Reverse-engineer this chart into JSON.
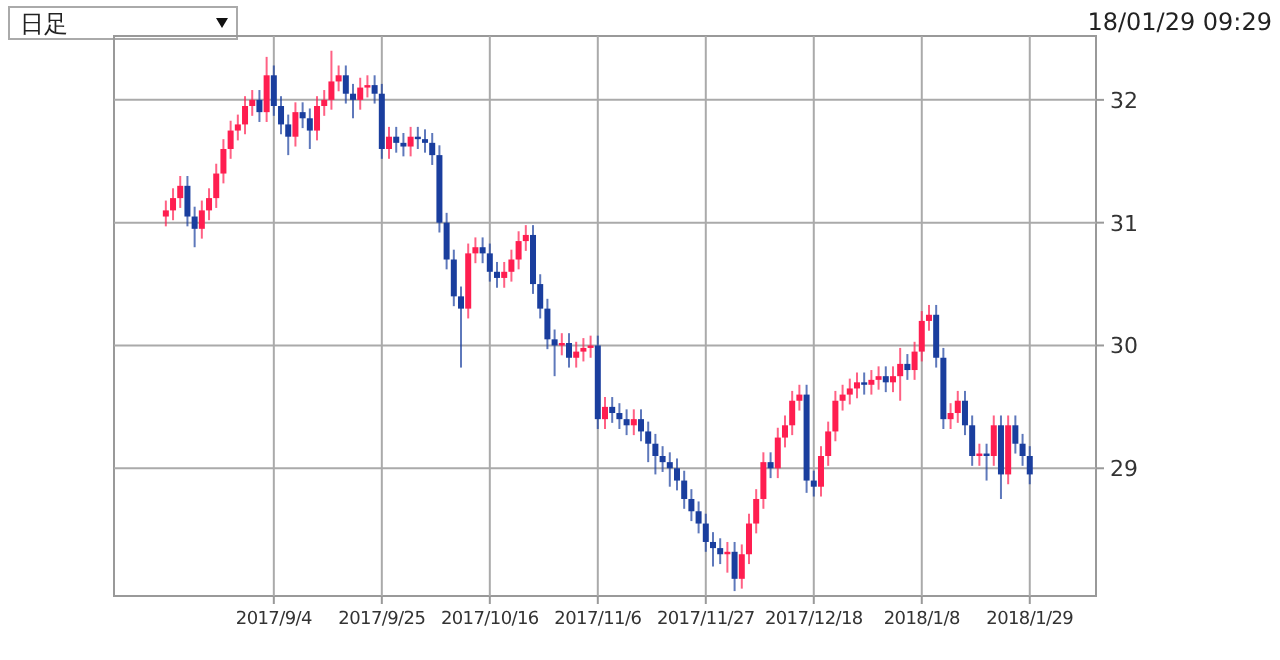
{
  "chart_data": {
    "type": "candlestick",
    "annotations": [
      "日足",
      "18/01/29 09:29"
    ],
    "categories": [
      null,
      null,
      null,
      null,
      null,
      null,
      null,
      null,
      null,
      null,
      null,
      null,
      null,
      null,
      null,
      "2017/9/4",
      null,
      null,
      null,
      null,
      null,
      null,
      null,
      null,
      null,
      null,
      null,
      null,
      null,
      null,
      "2017/9/25",
      null,
      null,
      null,
      null,
      null,
      null,
      null,
      null,
      null,
      null,
      null,
      null,
      null,
      null,
      "2017/10/16",
      null,
      null,
      null,
      null,
      null,
      null,
      null,
      null,
      null,
      null,
      null,
      null,
      null,
      null,
      "2017/11/6",
      null,
      null,
      null,
      null,
      null,
      null,
      null,
      null,
      null,
      null,
      null,
      null,
      null,
      null,
      "2017/11/27",
      null,
      null,
      null,
      null,
      null,
      null,
      null,
      null,
      null,
      null,
      null,
      null,
      null,
      null,
      "2017/12/18",
      null,
      null,
      null,
      null,
      null,
      null,
      null,
      null,
      null,
      null,
      null,
      null,
      null,
      null,
      "2018/1/8",
      null,
      null,
      null,
      null,
      null,
      null,
      null,
      null,
      null,
      null,
      null,
      null,
      null,
      null,
      "2018/1/29"
    ],
    "ohlc": [
      [
        31.05,
        31.18,
        30.97,
        31.1
      ],
      [
        31.1,
        31.28,
        31.02,
        31.2
      ],
      [
        31.2,
        31.38,
        31.12,
        31.3
      ],
      [
        31.3,
        31.38,
        30.97,
        31.05
      ],
      [
        31.05,
        31.13,
        30.8,
        30.95
      ],
      [
        30.95,
        31.18,
        30.87,
        31.1
      ],
      [
        31.1,
        31.28,
        31.02,
        31.2
      ],
      [
        31.2,
        31.48,
        31.12,
        31.4
      ],
      [
        31.4,
        31.68,
        31.32,
        31.6
      ],
      [
        31.6,
        31.83,
        31.52,
        31.75
      ],
      [
        31.75,
        31.88,
        31.67,
        31.8
      ],
      [
        31.8,
        32.03,
        31.72,
        31.95
      ],
      [
        31.95,
        32.08,
        31.87,
        32.0
      ],
      [
        32.0,
        32.08,
        31.82,
        31.9
      ],
      [
        31.9,
        32.35,
        31.82,
        32.2
      ],
      [
        32.2,
        32.28,
        31.87,
        31.95
      ],
      [
        31.95,
        32.03,
        31.72,
        31.8
      ],
      [
        31.8,
        31.88,
        31.55,
        31.7
      ],
      [
        31.7,
        31.98,
        31.62,
        31.9
      ],
      [
        31.9,
        31.98,
        31.77,
        31.85
      ],
      [
        31.85,
        31.93,
        31.6,
        31.75
      ],
      [
        31.75,
        32.03,
        31.67,
        31.95
      ],
      [
        31.95,
        32.08,
        31.87,
        32.0
      ],
      [
        32.0,
        32.4,
        31.92,
        32.15
      ],
      [
        32.15,
        32.28,
        32.07,
        32.2
      ],
      [
        32.2,
        32.28,
        31.97,
        32.05
      ],
      [
        32.05,
        32.13,
        31.85,
        32.0
      ],
      [
        32.0,
        32.18,
        31.92,
        32.1
      ],
      [
        32.1,
        32.2,
        32.02,
        32.12
      ],
      [
        32.12,
        32.2,
        31.97,
        32.05
      ],
      [
        32.05,
        32.13,
        31.52,
        31.6
      ],
      [
        31.6,
        31.78,
        31.52,
        31.7
      ],
      [
        31.7,
        31.78,
        31.57,
        31.65
      ],
      [
        31.65,
        31.73,
        31.54,
        31.62
      ],
      [
        31.62,
        31.78,
        31.54,
        31.7
      ],
      [
        31.7,
        31.78,
        31.6,
        31.68
      ],
      [
        31.68,
        31.76,
        31.57,
        31.65
      ],
      [
        31.65,
        31.73,
        31.47,
        31.55
      ],
      [
        31.55,
        31.63,
        30.92,
        31.0
      ],
      [
        31.0,
        31.08,
        30.62,
        30.7
      ],
      [
        30.7,
        30.78,
        30.32,
        30.4
      ],
      [
        30.4,
        30.48,
        29.82,
        30.3
      ],
      [
        30.3,
        30.83,
        30.22,
        30.75
      ],
      [
        30.75,
        30.88,
        30.67,
        30.8
      ],
      [
        30.8,
        30.88,
        30.67,
        30.75
      ],
      [
        30.75,
        30.83,
        30.52,
        30.6
      ],
      [
        30.6,
        30.68,
        30.47,
        30.55
      ],
      [
        30.55,
        30.68,
        30.47,
        30.6
      ],
      [
        30.6,
        30.78,
        30.52,
        30.7
      ],
      [
        30.7,
        30.93,
        30.62,
        30.85
      ],
      [
        30.85,
        30.98,
        30.77,
        30.9
      ],
      [
        30.9,
        30.98,
        30.42,
        30.5
      ],
      [
        30.5,
        30.58,
        30.22,
        30.3
      ],
      [
        30.3,
        30.38,
        29.97,
        30.05
      ],
      [
        30.05,
        30.13,
        29.75,
        30.0
      ],
      [
        30.0,
        30.1,
        29.92,
        30.02
      ],
      [
        30.02,
        30.1,
        29.82,
        29.9
      ],
      [
        29.9,
        30.03,
        29.82,
        29.95
      ],
      [
        29.95,
        30.06,
        29.87,
        29.98
      ],
      [
        29.98,
        30.08,
        29.9,
        30.0
      ],
      [
        30.0,
        30.08,
        29.32,
        29.4
      ],
      [
        29.4,
        29.58,
        29.32,
        29.5
      ],
      [
        29.5,
        29.58,
        29.37,
        29.45
      ],
      [
        29.45,
        29.53,
        29.32,
        29.4
      ],
      [
        29.4,
        29.48,
        29.27,
        29.35
      ],
      [
        29.35,
        29.48,
        29.27,
        29.4
      ],
      [
        29.4,
        29.48,
        29.22,
        29.3
      ],
      [
        29.3,
        29.38,
        29.05,
        29.2
      ],
      [
        29.2,
        29.28,
        28.95,
        29.1
      ],
      [
        29.1,
        29.18,
        28.97,
        29.05
      ],
      [
        29.05,
        29.13,
        28.85,
        29.0
      ],
      [
        29.0,
        29.08,
        28.82,
        28.9
      ],
      [
        28.9,
        28.98,
        28.67,
        28.75
      ],
      [
        28.75,
        28.83,
        28.57,
        28.65
      ],
      [
        28.65,
        28.73,
        28.47,
        28.55
      ],
      [
        28.55,
        28.63,
        28.32,
        28.4
      ],
      [
        28.4,
        28.48,
        28.2,
        28.35
      ],
      [
        28.35,
        28.43,
        28.22,
        28.3
      ],
      [
        28.3,
        28.4,
        28.15,
        28.32
      ],
      [
        28.32,
        28.4,
        28.0,
        28.1
      ],
      [
        28.1,
        28.38,
        28.02,
        28.3
      ],
      [
        28.3,
        28.63,
        28.22,
        28.55
      ],
      [
        28.55,
        28.83,
        28.47,
        28.75
      ],
      [
        28.75,
        29.13,
        28.67,
        29.05
      ],
      [
        29.05,
        29.13,
        28.92,
        29.0
      ],
      [
        29.0,
        29.33,
        28.92,
        29.25
      ],
      [
        29.25,
        29.43,
        29.17,
        29.35
      ],
      [
        29.35,
        29.63,
        29.27,
        29.55
      ],
      [
        29.55,
        29.68,
        29.47,
        29.6
      ],
      [
        29.6,
        29.68,
        28.8,
        28.9
      ],
      [
        28.9,
        28.98,
        28.77,
        28.85
      ],
      [
        28.85,
        29.18,
        28.77,
        29.1
      ],
      [
        29.1,
        29.38,
        29.02,
        29.3
      ],
      [
        29.3,
        29.63,
        29.22,
        29.55
      ],
      [
        29.55,
        29.68,
        29.47,
        29.6
      ],
      [
        29.6,
        29.73,
        29.52,
        29.65
      ],
      [
        29.65,
        29.78,
        29.57,
        29.7
      ],
      [
        29.7,
        29.78,
        29.6,
        29.68
      ],
      [
        29.68,
        29.8,
        29.6,
        29.72
      ],
      [
        29.72,
        29.83,
        29.64,
        29.75
      ],
      [
        29.75,
        29.83,
        29.62,
        29.7
      ],
      [
        29.7,
        29.83,
        29.62,
        29.75
      ],
      [
        29.75,
        29.98,
        29.55,
        29.85
      ],
      [
        29.85,
        29.93,
        29.72,
        29.8
      ],
      [
        29.8,
        30.03,
        29.72,
        29.95
      ],
      [
        29.95,
        30.28,
        29.87,
        30.2
      ],
      [
        30.2,
        30.33,
        30.12,
        30.25
      ],
      [
        30.25,
        30.33,
        29.82,
        29.9
      ],
      [
        29.9,
        29.98,
        29.32,
        29.4
      ],
      [
        29.4,
        29.53,
        29.32,
        29.45
      ],
      [
        29.45,
        29.63,
        29.37,
        29.55
      ],
      [
        29.55,
        29.63,
        29.27,
        29.35
      ],
      [
        29.35,
        29.43,
        29.02,
        29.1
      ],
      [
        29.1,
        29.2,
        29.02,
        29.12
      ],
      [
        29.12,
        29.2,
        28.9,
        29.1
      ],
      [
        29.1,
        29.43,
        29.02,
        29.35
      ],
      [
        29.35,
        29.43,
        28.75,
        28.95
      ],
      [
        28.95,
        29.43,
        28.87,
        29.35
      ],
      [
        29.35,
        29.43,
        29.12,
        29.2
      ],
      [
        29.2,
        29.28,
        29.02,
        29.1
      ],
      [
        29.1,
        29.18,
        28.87,
        28.95
      ]
    ],
    "colors": [
      "#ff1e50",
      "#ff1e50",
      "#ff1e50",
      "#1a3e9e",
      "#1a3e9e",
      "#ff1e50",
      "#ff1e50",
      "#ff1e50",
      "#ff1e50",
      "#ff1e50",
      "#ff1e50",
      "#ff1e50",
      "#ff1e50",
      "#1a3e9e",
      "#ff1e50",
      "#1a3e9e",
      "#1a3e9e",
      "#1a3e9e",
      "#ff1e50",
      "#1a3e9e",
      "#1a3e9e",
      "#ff1e50",
      "#ff1e50",
      "#ff1e50",
      "#ff1e50",
      "#1a3e9e",
      "#1a3e9e",
      "#ff1e50",
      "#ff1e50",
      "#1a3e9e",
      "#1a3e9e",
      "#ff1e50",
      "#1a3e9e",
      "#1a3e9e",
      "#ff1e50",
      "#1a3e9e",
      "#1a3e9e",
      "#1a3e9e",
      "#1a3e9e",
      "#1a3e9e",
      "#1a3e9e",
      "#1a3e9e",
      "#ff1e50",
      "#ff1e50",
      "#1a3e9e",
      "#1a3e9e",
      "#1a3e9e",
      "#ff1e50",
      "#ff1e50",
      "#ff1e50",
      "#ff1e50",
      "#1a3e9e",
      "#1a3e9e",
      "#1a3e9e",
      "#1a3e9e",
      "#ff1e50",
      "#1a3e9e",
      "#ff1e50",
      "#ff1e50",
      "#ff1e50",
      "#1a3e9e",
      "#ff1e50",
      "#1a3e9e",
      "#1a3e9e",
      "#1a3e9e",
      "#ff1e50",
      "#1a3e9e",
      "#1a3e9e",
      "#1a3e9e",
      "#1a3e9e",
      "#1a3e9e",
      "#1a3e9e",
      "#1a3e9e",
      "#1a3e9e",
      "#1a3e9e",
      "#1a3e9e",
      "#1a3e9e",
      "#1a3e9e",
      "#ff1e50",
      "#1a3e9e",
      "#ff1e50",
      "#ff1e50",
      "#ff1e50",
      "#ff1e50",
      "#1a3e9e",
      "#ff1e50",
      "#ff1e50",
      "#ff1e50",
      "#ff1e50",
      "#1a3e9e",
      "#1a3e9e",
      "#ff1e50",
      "#ff1e50",
      "#ff1e50",
      "#ff1e50",
      "#ff1e50",
      "#ff1e50",
      "#1a3e9e",
      "#ff1e50",
      "#ff1e50",
      "#1a3e9e",
      "#ff1e50",
      "#ff1e50",
      "#1a3e9e",
      "#ff1e50",
      "#ff1e50",
      "#ff1e50",
      "#1a3e9e",
      "#1a3e9e",
      "#ff1e50",
      "#ff1e50",
      "#1a3e9e",
      "#1a3e9e",
      "#ff1e50",
      "#1a3e9e",
      "#ff1e50",
      "#1a3e9e",
      "#ff1e50",
      "#1a3e9e",
      "#1a3e9e",
      "#1a3e9e"
    ],
    "ylim": [
      27.96,
      32.52
    ],
    "yticks": [
      29,
      30,
      31,
      32
    ],
    "grid": true
  }
}
